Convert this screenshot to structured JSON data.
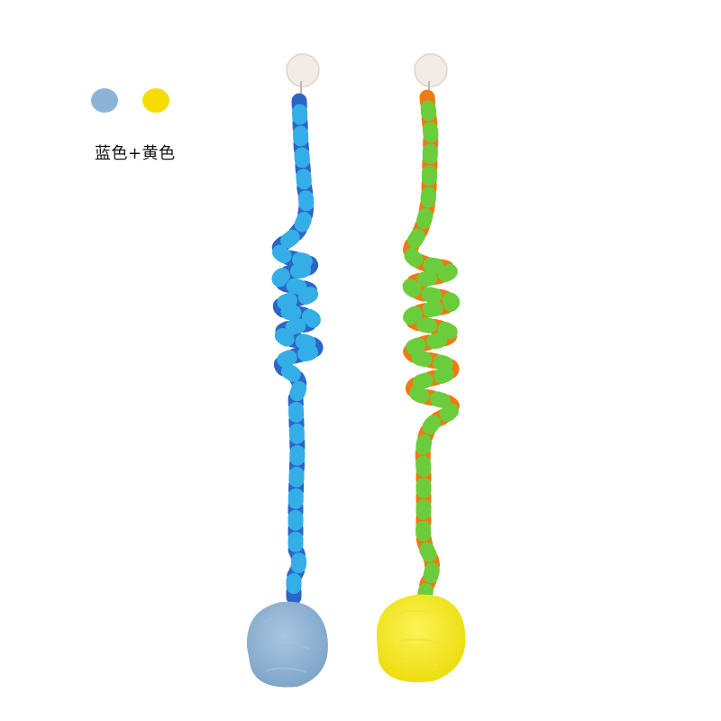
{
  "legend": {
    "swatches": [
      {
        "name": "blue",
        "color": "#8db4d6"
      },
      {
        "name": "yellow",
        "color": "#f7dc00"
      }
    ],
    "label": "蓝色+黄色"
  },
  "toys": [
    {
      "name": "blue-toy",
      "stripe_colors": [
        "#2d64c8",
        "#33aee6"
      ],
      "ball_color": "#8fb3d3"
    },
    {
      "name": "yellow-toy",
      "stripe_colors": [
        "#f07a10",
        "#6ccd3c"
      ],
      "ball_color": "#f6ec2c"
    }
  ]
}
